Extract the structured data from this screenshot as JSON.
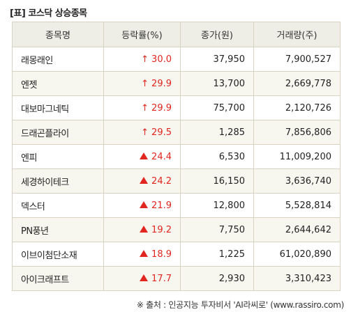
{
  "title": "[표] 코스닥 상승종목",
  "headers": [
    "종목명",
    "등락률(%)",
    "종가(원)",
    "거래량(주)"
  ],
  "rows": [
    {
      "name": "래몽래인",
      "arrow": "up-arrow",
      "rate": "30.0",
      "close": "37,950",
      "volume": "7,900,527"
    },
    {
      "name": "엔젯",
      "arrow": "up-arrow",
      "rate": "29.9",
      "close": "13,700",
      "volume": "2,669,778"
    },
    {
      "name": "대보마그네틱",
      "arrow": "up-arrow",
      "rate": "29.9",
      "close": "75,700",
      "volume": "2,120,726"
    },
    {
      "name": "드래곤플라이",
      "arrow": "up-arrow",
      "rate": "29.5",
      "close": "1,285",
      "volume": "7,856,806"
    },
    {
      "name": "엔피",
      "arrow": "up-triangle",
      "rate": "24.4",
      "close": "6,530",
      "volume": "11,009,200"
    },
    {
      "name": "세경하이테크",
      "arrow": "up-triangle",
      "rate": "24.2",
      "close": "16,150",
      "volume": "3,636,740"
    },
    {
      "name": "덱스터",
      "arrow": "up-triangle",
      "rate": "21.9",
      "close": "12,800",
      "volume": "5,528,814"
    },
    {
      "name": "PN풍년",
      "arrow": "up-triangle",
      "rate": "19.2",
      "close": "7,750",
      "volume": "2,644,642"
    },
    {
      "name": "이브이첨단소재",
      "arrow": "up-triangle",
      "rate": "18.9",
      "close": "1,225",
      "volume": "61,020,890"
    },
    {
      "name": "아이크래프트",
      "arrow": "up-triangle",
      "rate": "17.7",
      "close": "2,930",
      "volume": "3,310,423"
    }
  ],
  "source": "※ 출처 : 인공지능 투자비서 'AI라씨로' (www.rassiro.com)",
  "colors": {
    "up": "#e0261f",
    "header_bg": "#efeee6",
    "border": "#d7d2c2"
  }
}
